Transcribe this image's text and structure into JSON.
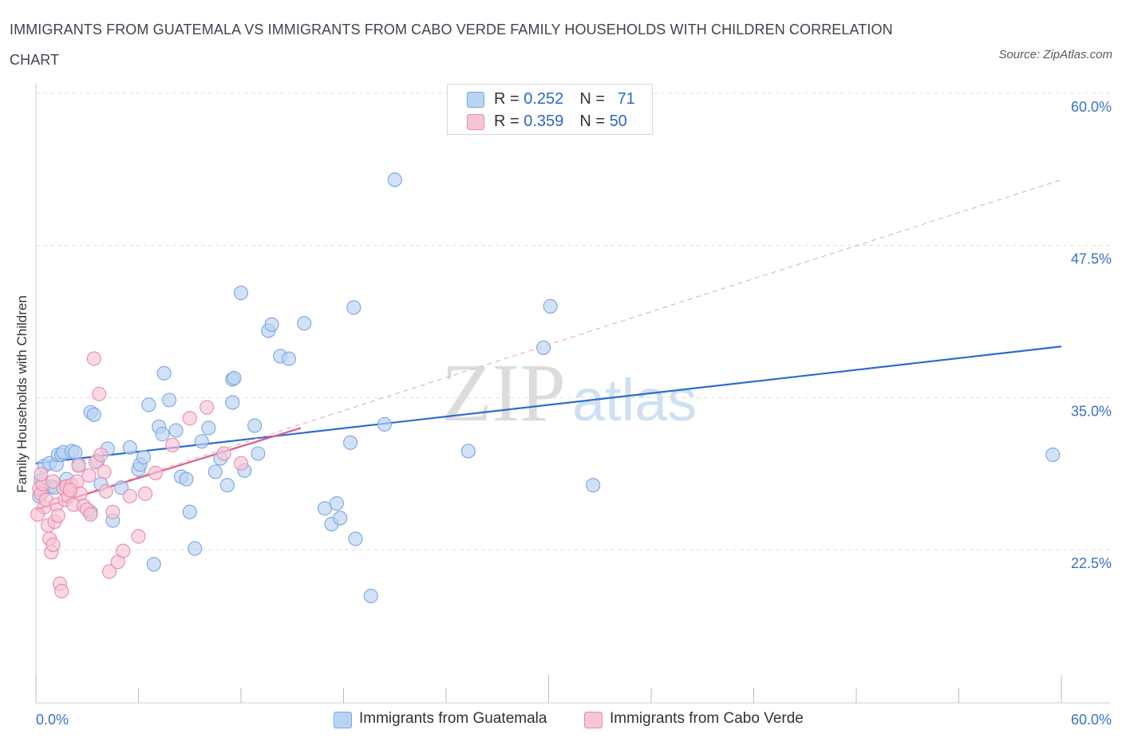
{
  "title": "IMMIGRANTS FROM GUATEMALA VS IMMIGRANTS FROM CABO VERDE FAMILY HOUSEHOLDS WITH CHILDREN CORRELATION CHART",
  "source": "Source: ZipAtlas.com",
  "legend": {
    "row1": {
      "r_label": "R = ",
      "r_value": "0.252",
      "n_label": "N = ",
      "n_value": "71"
    },
    "row2": {
      "r_label": "R = ",
      "r_value": "0.359",
      "n_label": "N = ",
      "n_value": "50"
    }
  },
  "colors": {
    "guatemala_fill": "#b9d3f3",
    "guatemala_stroke": "#7aa6e0",
    "guatemala_line": "#2b6cd0",
    "caboverde_fill": "#f7c5d6",
    "caboverde_stroke": "#e88aab",
    "caboverde_line": "#d9608a",
    "tick_text": "#3a72c8",
    "grid": "#dddddd"
  },
  "chart_data": {
    "type": "scatter",
    "title": "IMMIGRANTS FROM GUATEMALA VS IMMIGRANTS FROM CABO VERDE FAMILY HOUSEHOLDS WITH CHILDREN CORRELATION CHART",
    "xlabel": "",
    "ylabel": "Family Households with Children",
    "xlim": [
      0,
      60
    ],
    "ylim": [
      12,
      61
    ],
    "x_tick_labels": [
      "0.0%",
      "60.0%"
    ],
    "y_ticks": [
      22.5,
      35.0,
      47.5,
      60.0
    ],
    "y_tick_labels": [
      "22.5%",
      "35.0%",
      "47.5%",
      "60.0%"
    ],
    "grid": true,
    "legend_position": "top-center",
    "series": [
      {
        "name": "Immigrants from Guatemala",
        "trend": {
          "x": [
            0,
            60
          ],
          "y": [
            29.6,
            39.2
          ]
        },
        "points": [
          [
            0.3,
            28.2
          ],
          [
            0.4,
            27.3
          ],
          [
            0.5,
            29.4
          ],
          [
            0.8,
            29.6
          ],
          [
            0.9,
            27.7
          ],
          [
            1.2,
            29.5
          ],
          [
            1.3,
            30.3
          ],
          [
            1.5,
            30.3
          ],
          [
            1.6,
            30.5
          ],
          [
            1.8,
            28.3
          ],
          [
            2.0,
            27.3
          ],
          [
            2.1,
            30.6
          ],
          [
            2.3,
            30.5
          ],
          [
            2.5,
            29.5
          ],
          [
            3.2,
            33.8
          ],
          [
            3.2,
            25.6
          ],
          [
            3.4,
            33.6
          ],
          [
            3.6,
            29.8
          ],
          [
            3.8,
            27.9
          ],
          [
            4.2,
            30.8
          ],
          [
            4.5,
            24.9
          ],
          [
            5.0,
            27.6
          ],
          [
            5.5,
            30.9
          ],
          [
            6.0,
            29.1
          ],
          [
            6.1,
            29.5
          ],
          [
            6.3,
            30.1
          ],
          [
            6.6,
            34.4
          ],
          [
            6.9,
            21.3
          ],
          [
            7.2,
            32.6
          ],
          [
            7.4,
            32.0
          ],
          [
            7.5,
            37.0
          ],
          [
            7.8,
            34.8
          ],
          [
            8.2,
            32.3
          ],
          [
            8.5,
            28.5
          ],
          [
            8.8,
            28.3
          ],
          [
            9.0,
            25.6
          ],
          [
            9.3,
            22.6
          ],
          [
            9.7,
            31.4
          ],
          [
            10.1,
            32.5
          ],
          [
            10.5,
            28.9
          ],
          [
            10.8,
            30.0
          ],
          [
            11.2,
            27.8
          ],
          [
            11.5,
            36.5
          ],
          [
            11.5,
            34.6
          ],
          [
            11.6,
            36.6
          ],
          [
            12.0,
            43.6
          ],
          [
            12.2,
            29.0
          ],
          [
            12.8,
            32.7
          ],
          [
            13.6,
            40.5
          ],
          [
            13.8,
            41.0
          ],
          [
            14.3,
            38.4
          ],
          [
            14.8,
            38.2
          ],
          [
            15.7,
            41.1
          ],
          [
            16.9,
            25.9
          ],
          [
            17.3,
            24.6
          ],
          [
            17.6,
            26.3
          ],
          [
            17.8,
            25.1
          ],
          [
            18.4,
            31.3
          ],
          [
            18.6,
            42.4
          ],
          [
            18.7,
            23.4
          ],
          [
            19.6,
            18.7
          ],
          [
            20.4,
            32.8
          ],
          [
            21.0,
            52.9
          ],
          [
            25.3,
            30.6
          ],
          [
            29.7,
            39.1
          ],
          [
            30.1,
            42.5
          ],
          [
            32.6,
            27.8
          ],
          [
            59.5,
            30.3
          ],
          [
            0.2,
            26.9
          ],
          [
            1.1,
            27.6
          ],
          [
            13.0,
            30.4
          ]
        ]
      },
      {
        "name": "Immigrants from Cabo Verde",
        "trend": {
          "x": [
            0,
            15.5
          ],
          "y": [
            25.8,
            32.5
          ]
        },
        "trend_extended": {
          "x": [
            0,
            60
          ],
          "y": [
            25.8,
            52.9
          ]
        },
        "points": [
          [
            0.2,
            27.5
          ],
          [
            0.3,
            27.1
          ],
          [
            0.4,
            27.9
          ],
          [
            0.5,
            26.0
          ],
          [
            0.6,
            26.6
          ],
          [
            0.7,
            24.5
          ],
          [
            0.8,
            23.4
          ],
          [
            0.9,
            22.3
          ],
          [
            1.0,
            22.9
          ],
          [
            1.1,
            24.8
          ],
          [
            1.2,
            26.2
          ],
          [
            1.3,
            25.3
          ],
          [
            1.4,
            19.7
          ],
          [
            1.5,
            19.1
          ],
          [
            1.6,
            27.6
          ],
          [
            1.7,
            26.6
          ],
          [
            1.8,
            27.7
          ],
          [
            1.9,
            26.9
          ],
          [
            2.1,
            27.8
          ],
          [
            2.2,
            26.2
          ],
          [
            2.4,
            28.1
          ],
          [
            2.5,
            29.4
          ],
          [
            2.6,
            27.1
          ],
          [
            2.8,
            26.1
          ],
          [
            3.0,
            25.8
          ],
          [
            3.1,
            28.6
          ],
          [
            3.2,
            25.4
          ],
          [
            3.4,
            38.2
          ],
          [
            3.5,
            29.7
          ],
          [
            3.7,
            35.3
          ],
          [
            3.8,
            30.3
          ],
          [
            4.0,
            28.9
          ],
          [
            4.1,
            27.3
          ],
          [
            4.3,
            20.7
          ],
          [
            4.5,
            25.6
          ],
          [
            4.8,
            21.5
          ],
          [
            5.1,
            22.4
          ],
          [
            5.5,
            26.9
          ],
          [
            6.0,
            23.6
          ],
          [
            6.4,
            27.1
          ],
          [
            7.0,
            28.8
          ],
          [
            8.0,
            31.1
          ],
          [
            9.0,
            33.3
          ],
          [
            10.0,
            34.2
          ],
          [
            11.0,
            30.4
          ],
          [
            12.0,
            29.6
          ],
          [
            0.1,
            25.4
          ],
          [
            0.3,
            28.7
          ],
          [
            1.0,
            28.1
          ],
          [
            2.0,
            27.4
          ]
        ]
      }
    ]
  },
  "bottom_legend": {
    "item1": "Immigrants from Guatemala",
    "item2": "Immigrants from Cabo Verde"
  },
  "watermark": {
    "part1": "ZIP",
    "part2": "atlas"
  }
}
